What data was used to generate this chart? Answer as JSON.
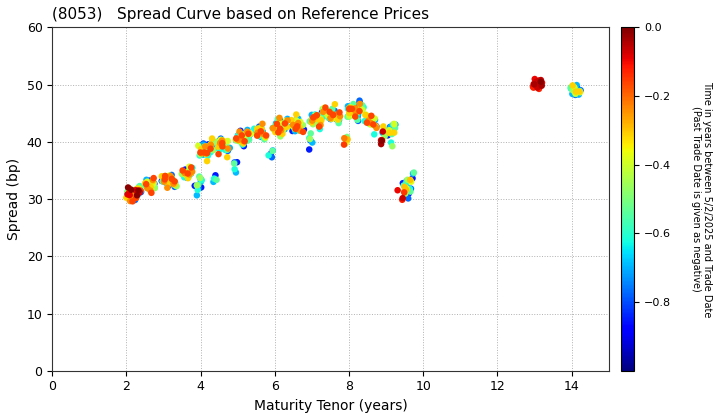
{
  "title": "(8053)   Spread Curve based on Reference Prices",
  "xlabel": "Maturity Tenor (years)",
  "ylabel": "Spread (bp)",
  "colorbar_label_top": "Time in years between 5/2/2025 and Trade Date",
  "colorbar_label_bottom": "(Past Trade Date is given as negative)",
  "colorbar_ticks": [
    0.0,
    -0.2,
    -0.4,
    -0.6,
    -0.8
  ],
  "xlim": [
    0,
    15
  ],
  "ylim": [
    0,
    60
  ],
  "xticks": [
    0,
    2,
    4,
    6,
    8,
    10,
    12,
    14
  ],
  "yticks": [
    0,
    10,
    20,
    30,
    40,
    50,
    60
  ],
  "background": "#ffffff",
  "grid_color": "#b0b0b0",
  "cmap": "jet",
  "vmin": -1.0,
  "vmax": 0.0,
  "dot_size": 22
}
